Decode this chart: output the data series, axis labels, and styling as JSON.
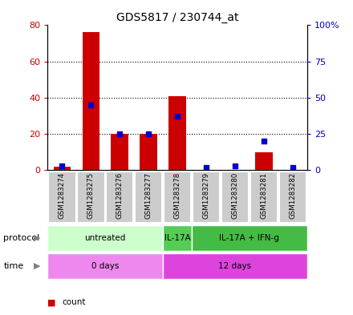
{
  "title": "GDS5817 / 230744_at",
  "samples": [
    "GSM1283274",
    "GSM1283275",
    "GSM1283276",
    "GSM1283277",
    "GSM1283278",
    "GSM1283279",
    "GSM1283280",
    "GSM1283281",
    "GSM1283282"
  ],
  "count": [
    2,
    76,
    20,
    20,
    41,
    0,
    0,
    10,
    0
  ],
  "percentile": [
    3,
    45,
    25,
    25,
    37,
    2,
    3,
    20,
    2
  ],
  "ylim_left": [
    0,
    80
  ],
  "ylim_right": [
    0,
    100
  ],
  "yticks_left": [
    0,
    20,
    40,
    60,
    80
  ],
  "yticks_right": [
    0,
    25,
    50,
    75,
    100
  ],
  "ytick_labels_left": [
    "0",
    "20",
    "40",
    "60",
    "80"
  ],
  "ytick_labels_right": [
    "0",
    "25",
    "50",
    "75",
    "100%"
  ],
  "protocol_groups": [
    {
      "label": "untreated",
      "start": 0,
      "end": 3,
      "color": "#ccffcc"
    },
    {
      "label": "IL-17A",
      "start": 4,
      "end": 4,
      "color": "#55cc55"
    },
    {
      "label": "IL-17A + IFN-g",
      "start": 5,
      "end": 8,
      "color": "#44bb44"
    }
  ],
  "time_groups": [
    {
      "label": "0 days",
      "start": 0,
      "end": 3,
      "color": "#ee88ee"
    },
    {
      "label": "12 days",
      "start": 4,
      "end": 8,
      "color": "#dd44dd"
    }
  ],
  "bar_color": "#cc0000",
  "dot_color": "#0000cc",
  "sample_bg": "#cccccc",
  "legend_count_color": "#cc0000",
  "legend_pct_color": "#0000cc"
}
